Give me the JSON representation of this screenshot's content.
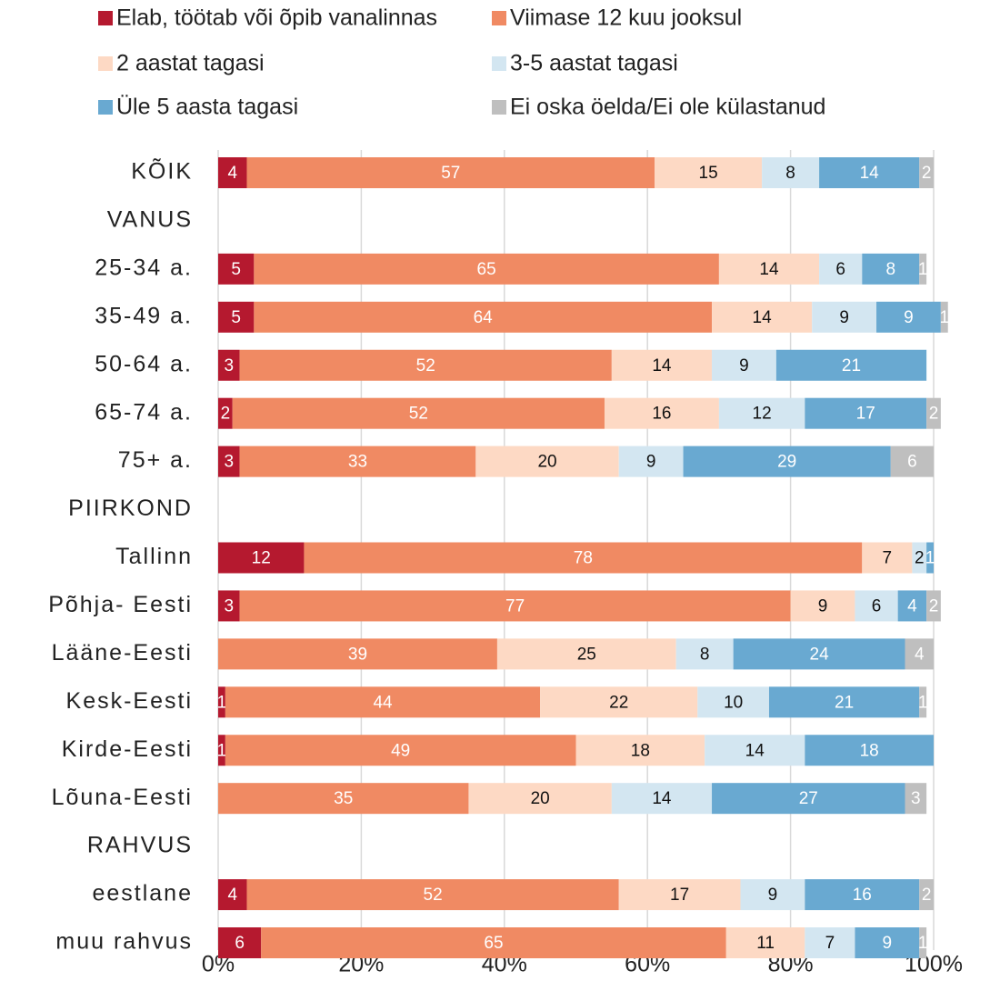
{
  "chart_data": {
    "type": "stacked_bar_horizontal",
    "categories": [
      "KÕIK",
      "VANUS",
      "25-34 a.",
      "35-49 a.",
      "50-64 a.",
      "65-74 a.",
      "75+ a.",
      "PIIRKOND",
      "Tallinn",
      "Põhja- Eesti",
      "Lääne-Eesti",
      "Kesk-Eesti",
      "Kirde-Eesti",
      "Lõuna-Eesti",
      "RAHVUS",
      "eestlane",
      "muu rahvus"
    ],
    "series": [
      {
        "name": "Elab, töötab  või õpib vanalinnas",
        "color": "#b5192f",
        "values": [
          4,
          null,
          5,
          5,
          3,
          2,
          3,
          null,
          12,
          3,
          null,
          1,
          1,
          null,
          null,
          4,
          6
        ]
      },
      {
        "name": "Viimase 12 kuu jooksul",
        "color": "#f08a63",
        "values": [
          57,
          null,
          65,
          64,
          52,
          52,
          33,
          null,
          78,
          77,
          39,
          44,
          49,
          35,
          null,
          52,
          65
        ]
      },
      {
        "name": "2 aastat tagasi",
        "color": "#fdd9c4",
        "values": [
          15,
          null,
          14,
          14,
          14,
          16,
          20,
          null,
          7,
          9,
          25,
          22,
          18,
          20,
          null,
          17,
          11
        ]
      },
      {
        "name": "3-5 aastat tagasi",
        "color": "#d3e6f1",
        "values": [
          8,
          null,
          6,
          9,
          9,
          12,
          9,
          null,
          2,
          6,
          8,
          10,
          14,
          14,
          null,
          9,
          7
        ]
      },
      {
        "name": "Üle 5 aasta tagasi",
        "color": "#69a9d1",
        "values": [
          14,
          null,
          8,
          9,
          21,
          17,
          29,
          null,
          1,
          4,
          24,
          21,
          18,
          27,
          null,
          16,
          9
        ]
      },
      {
        "name": "Ei oska öelda/Ei ole külastanud",
        "color": "#bfbfbf",
        "values": [
          2,
          null,
          1,
          1,
          null,
          2,
          6,
          null,
          null,
          2,
          4,
          1,
          null,
          3,
          null,
          2,
          1
        ]
      }
    ],
    "xlim": [
      0,
      100
    ],
    "xticks": [
      {
        "value": 0,
        "label": "0%"
      },
      {
        "value": 20,
        "label": "20%"
      },
      {
        "value": 40,
        "label": "40%"
      },
      {
        "value": 60,
        "label": "60%"
      },
      {
        "value": 80,
        "label": "80%"
      },
      {
        "value": 100,
        "label": "100%"
      }
    ],
    "grid": true
  }
}
